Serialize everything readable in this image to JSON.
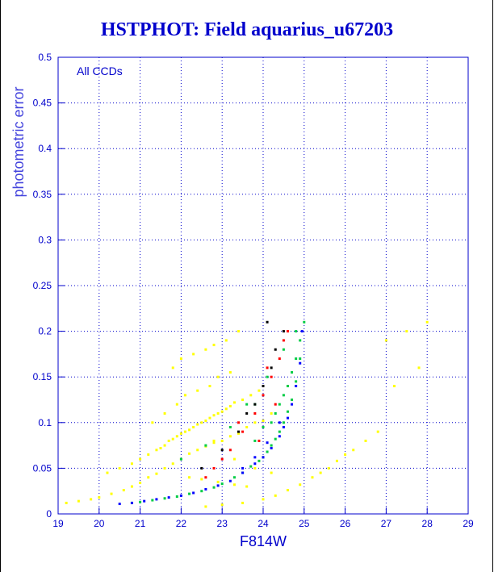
{
  "colors": {
    "title": "#0000cc",
    "axis": "#0000cc",
    "grid": "#0000cc",
    "ylabel": "#4444dd",
    "annotation": "#0000cc",
    "background": "#ffffff",
    "frame": "#000000"
  },
  "chart_data": {
    "type": "scatter",
    "title": "HSTPHOT: Field aquarius_u67203",
    "xlabel": "F814W",
    "ylabel": "photometric error",
    "annotation": "All CCDs",
    "xlim": [
      19,
      29
    ],
    "ylim": [
      0,
      0.5
    ],
    "grid": true,
    "x_ticks": [
      "19",
      "20",
      "21",
      "22",
      "23",
      "24",
      "25",
      "26",
      "27",
      "28",
      "29"
    ],
    "y_ticks": [
      "0",
      "0.05",
      "0.1",
      "0.15",
      "0.2",
      "0.25",
      "0.3",
      "0.35",
      "0.4",
      "0.45",
      "0.5"
    ],
    "series": [
      {
        "color": "#ffff00",
        "x": [
          19.2,
          19.5,
          19.8,
          20.0,
          20.3,
          20.6,
          20.8,
          21.0,
          21.2,
          21.4,
          21.6,
          21.8,
          22.0,
          22.2,
          22.4,
          22.6,
          22.8,
          23.0,
          23.2,
          23.4,
          23.6,
          23.8,
          24.0,
          24.2,
          20.2,
          20.5,
          20.8,
          21.0,
          21.2,
          21.4,
          21.5,
          21.6,
          21.7,
          21.8,
          21.9,
          22.0,
          22.1,
          22.2,
          22.3,
          22.4,
          22.5,
          22.6,
          22.7,
          22.8,
          22.9,
          23.0,
          23.1,
          23.2,
          23.3,
          23.5,
          23.7,
          23.9,
          21.3,
          21.6,
          21.9,
          22.1,
          22.4,
          22.7,
          22.9,
          23.2,
          21.8,
          22.0,
          22.3,
          22.6,
          22.8,
          23.1,
          23.4,
          22.2,
          22.5,
          22.9,
          23.3,
          23.6,
          22.6,
          23.0,
          23.5,
          24.0,
          24.3,
          24.6,
          24.9,
          25.2,
          25.4,
          25.6,
          25.8,
          26.0,
          26.2,
          26.5,
          26.8,
          27.0,
          27.5,
          28.0,
          27.2,
          27.8,
          22.8,
          23.3,
          23.8,
          24.2
        ],
        "y": [
          0.012,
          0.014,
          0.016,
          0.018,
          0.022,
          0.026,
          0.03,
          0.034,
          0.04,
          0.044,
          0.05,
          0.055,
          0.06,
          0.066,
          0.07,
          0.074,
          0.078,
          0.08,
          0.085,
          0.088,
          0.095,
          0.1,
          0.102,
          0.11,
          0.045,
          0.05,
          0.055,
          0.06,
          0.065,
          0.07,
          0.072,
          0.075,
          0.08,
          0.082,
          0.085,
          0.088,
          0.09,
          0.092,
          0.095,
          0.098,
          0.1,
          0.102,
          0.105,
          0.108,
          0.11,
          0.112,
          0.115,
          0.118,
          0.122,
          0.125,
          0.13,
          0.135,
          0.1,
          0.11,
          0.12,
          0.13,
          0.135,
          0.14,
          0.15,
          0.155,
          0.16,
          0.17,
          0.175,
          0.18,
          0.185,
          0.19,
          0.2,
          0.04,
          0.038,
          0.035,
          0.032,
          0.03,
          0.008,
          0.01,
          0.012,
          0.016,
          0.02,
          0.026,
          0.032,
          0.04,
          0.045,
          0.05,
          0.058,
          0.065,
          0.07,
          0.08,
          0.09,
          0.19,
          0.2,
          0.21,
          0.14,
          0.16,
          0.08,
          0.06,
          0.05,
          0.045
        ]
      },
      {
        "color": "#00cc44",
        "x": [
          20.8,
          21.0,
          21.3,
          21.6,
          21.9,
          22.2,
          22.5,
          22.8,
          23.0,
          23.3,
          23.5,
          23.7,
          23.9,
          24.0,
          24.1,
          24.2,
          24.3,
          24.4,
          24.5,
          24.6,
          24.7,
          24.8,
          24.9,
          25.0,
          24.2,
          24.4,
          24.6,
          24.8,
          23.8,
          24.0,
          24.3,
          24.5,
          24.7,
          24.9,
          23.6,
          24.1,
          24.5,
          24.8,
          22.0,
          22.6,
          23.2,
          23.8
        ],
        "y": [
          0.012,
          0.013,
          0.015,
          0.017,
          0.019,
          0.022,
          0.025,
          0.029,
          0.033,
          0.04,
          0.045,
          0.052,
          0.058,
          0.062,
          0.068,
          0.075,
          0.082,
          0.09,
          0.1,
          0.112,
          0.125,
          0.145,
          0.17,
          0.21,
          0.1,
          0.12,
          0.14,
          0.17,
          0.08,
          0.095,
          0.11,
          0.13,
          0.155,
          0.19,
          0.12,
          0.15,
          0.18,
          0.2,
          0.06,
          0.075,
          0.095,
          0.12
        ]
      },
      {
        "color": "#0000ff",
        "x": [
          20.5,
          20.8,
          21.1,
          21.4,
          21.7,
          22.0,
          22.3,
          22.6,
          22.9,
          23.2,
          23.5,
          23.8,
          24.0,
          24.2,
          24.4,
          24.5,
          24.6,
          24.7,
          24.8,
          24.9,
          24.95,
          23.5,
          23.8,
          24.1,
          24.4
        ],
        "y": [
          0.011,
          0.012,
          0.014,
          0.016,
          0.018,
          0.02,
          0.023,
          0.027,
          0.031,
          0.036,
          0.045,
          0.055,
          0.062,
          0.072,
          0.085,
          0.095,
          0.105,
          0.12,
          0.14,
          0.165,
          0.2,
          0.05,
          0.062,
          0.078,
          0.1
        ]
      },
      {
        "color": "#ff0000",
        "x": [
          22.6,
          23.0,
          23.2,
          23.5,
          23.8,
          24.0,
          24.2,
          24.4,
          24.5,
          24.6,
          23.4,
          23.9,
          24.3,
          22.8,
          24.1
        ],
        "y": [
          0.04,
          0.06,
          0.07,
          0.09,
          0.11,
          0.13,
          0.15,
          0.17,
          0.19,
          0.2,
          0.1,
          0.08,
          0.12,
          0.05,
          0.16
        ]
      },
      {
        "color": "#000000",
        "x": [
          22.5,
          23.0,
          23.4,
          23.8,
          24.0,
          24.2,
          24.3,
          24.5,
          24.1,
          23.6
        ],
        "y": [
          0.05,
          0.07,
          0.09,
          0.12,
          0.14,
          0.16,
          0.18,
          0.2,
          0.21,
          0.11
        ]
      }
    ]
  }
}
